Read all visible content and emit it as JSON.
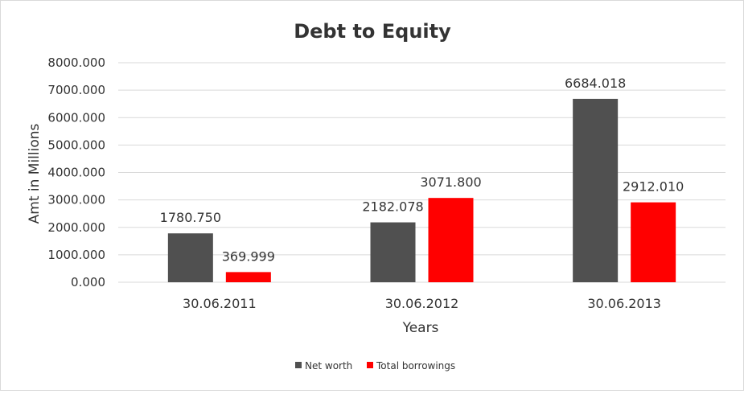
{
  "chart_data": {
    "type": "bar",
    "title": "Debt to Equity",
    "xlabel": "Years",
    "ylabel": "Amt in Millions",
    "categories": [
      "30.06.2011",
      "30.06.2012",
      "30.06.2013"
    ],
    "series": [
      {
        "name": "Net worth",
        "values": [
          1780.75,
          2182.078,
          6684.018
        ],
        "labels": [
          "1780.750",
          "2182.078",
          "6684.018"
        ],
        "color": "#505050"
      },
      {
        "name": "Total borrowings",
        "values": [
          369.999,
          3071.8,
          2912.01
        ],
        "labels": [
          "369.999",
          "3071.800",
          "2912.010"
        ],
        "color": "#ff0000"
      }
    ],
    "ylim": [
      0,
      8000
    ],
    "yticks": [
      "0.000",
      "1000.000",
      "2000.000",
      "3000.000",
      "4000.000",
      "5000.000",
      "6000.000",
      "7000.000",
      "8000.000"
    ],
    "grid": true,
    "legend": "bottom-center",
    "gridColor": "#d9d9d9"
  }
}
